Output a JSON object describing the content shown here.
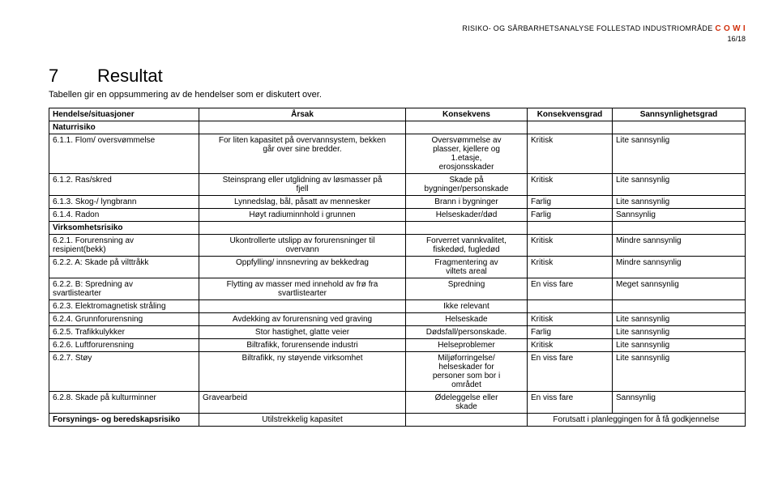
{
  "header": {
    "doc_title": "RISIKO- OG SÅRBARHETSANALYSE FOLLESTAD INDUSTRIOMRÅDE",
    "logo_text": "C O W I",
    "page_num": "16/18"
  },
  "section": {
    "number": "7",
    "title": "Resultat",
    "subtitle": "Tabellen gir en oppsummering av de hendelser som er diskutert over."
  },
  "table": {
    "headers": {
      "c1": "Hendelse/situasjoner",
      "c2": "Årsak",
      "c3": "Konsekvens",
      "c4": "Konsekvensgrad",
      "c5": "Sannsynlighetsgrad"
    },
    "rows": [
      {
        "type": "group",
        "c1": "Naturrisiko"
      },
      {
        "c1": "6.1.1. Flom/ oversvømmelse",
        "c2_a": "For liten kapasitet på overvannsystem, bekken",
        "c2_b": "går over sine bredder.",
        "c3_a": "Oversvømmelse av",
        "c3_b": "plasser, kjellere og",
        "c3_c": "1.etasje,",
        "c3_d": "erosjonsskader",
        "c4": "Kritisk",
        "c5": "Lite sannsynlig"
      },
      {
        "c1": "6.1.2. Ras/skred",
        "c2_a": "Steinsprang eller utglidning av løsmasser på",
        "c2_b": "fjell",
        "c3_a": "Skade på",
        "c3_b": "bygninger/personskade",
        "c4": "Kritisk",
        "c5": "Lite sannsynlig"
      },
      {
        "c1": "6.1.3. Skog-/ lyngbrann",
        "c2": "Lynnedslag, bål, påsatt av mennesker",
        "c3": "Brann i bygninger",
        "c4": "Farlig",
        "c5": "Lite sannsynlig"
      },
      {
        "c1": "6.1.4. Radon",
        "c2": "Høyt radiuminnhold i grunnen",
        "c3": "Helseskader/død",
        "c4": "Farlig",
        "c5": "Sannsynlig"
      },
      {
        "type": "group",
        "c1": "Virksomhetsrisiko"
      },
      {
        "c1_a": "6.2.1. Forurensning av",
        "c1_b": "resipient(bekk)",
        "c2_a": "Ukontrollerte utslipp av forurensninger til",
        "c2_b": "overvann",
        "c3_a": "Forverret vannkvalitet,",
        "c3_b": "fiskedød, fugledød",
        "c4": "Kritisk",
        "c5": "Mindre sannsynlig"
      },
      {
        "c1": "6.2.2. A: Skade på vilttråkk",
        "c2": "Oppfylling/ innsnevring av bekkedrag",
        "c3_a": "Fragmentering av",
        "c3_b": "viltets areal",
        "c4": "Kritisk",
        "c5": "Mindre sannsynlig"
      },
      {
        "c1_a": "6.2.2. B: Spredning av",
        "c1_b": "svartlistearter",
        "c2_a": "Flytting av masser med innehold av frø fra",
        "c2_b": "svartlistearter",
        "c3": "Spredning",
        "c4": "En viss fare",
        "c5": "Meget sannsynlig"
      },
      {
        "c1": "6.2.3. Elektromagnetisk stråling",
        "c2": "",
        "c3": "Ikke relevant",
        "c4": "",
        "c5": ""
      },
      {
        "c1": "6.2.4. Grunnforurensning",
        "c2": "Avdekking av forurensning ved graving",
        "c3": "Helseskade",
        "c4": "Kritisk",
        "c5": "Lite sannsynlig"
      },
      {
        "c1": "6.2.5. Trafikkulykker",
        "c2": "Stor hastighet, glatte veier",
        "c3": "Dødsfall/personskade.",
        "c4": "Farlig",
        "c5": "Lite sannsynlig"
      },
      {
        "c1": "6.2.6. Luftforurensning",
        "c2": "Biltrafikk, forurensende industri",
        "c3": "Helseproblemer",
        "c4": "Kritisk",
        "c5": "Lite sannsynlig"
      },
      {
        "c1": "6.2.7. Støy",
        "c2": "Biltrafikk, ny støyende virksomhet",
        "c3_a": "Miljøforringelse/",
        "c3_b": "helseskader for",
        "c3_c": "personer som bor i",
        "c3_d": "området",
        "c4": "En viss fare",
        "c5": "Lite sannsynlig"
      },
      {
        "c1": "6.2.8. Skade på kulturminner",
        "c2": "Gravearbeid",
        "c3_a": "Ødeleggelse eller",
        "c3_b": "skade",
        "c4": "En viss fare",
        "c5": "Sannsynlig"
      },
      {
        "type": "footer",
        "c1": "Forsynings- og beredskapsrisiko",
        "c2": "Utilstrekkelig kapasitet",
        "c3": "",
        "c4_span": "Forutsatt i planleggingen for å få godkjennelse"
      }
    ]
  }
}
